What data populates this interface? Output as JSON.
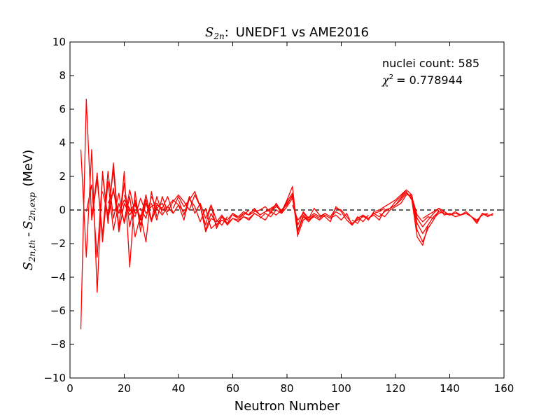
{
  "chart_data": {
    "type": "line",
    "title": {
      "math": "S",
      "math_sub": "2n",
      "colon": ":",
      "text": "UNEDF1 vs AME2016"
    },
    "xlabel": "Neutron Number",
    "ylabel": {
      "th_main": "S",
      "th_sub": "2n,th",
      "dash": "-",
      "exp_main": "S",
      "exp_sub": "2n,exp",
      "unit": "(MeV)"
    },
    "xlim": [
      0,
      160
    ],
    "ylim": [
      -10,
      10
    ],
    "xticks": [
      0,
      20,
      40,
      60,
      80,
      100,
      120,
      140,
      160
    ],
    "yticks": [
      -10,
      -8,
      -6,
      -4,
      -2,
      0,
      2,
      4,
      6,
      8,
      10
    ],
    "grid": false,
    "reference_line": {
      "y": 0,
      "style": "dashed",
      "color": "#000000"
    },
    "annotation": {
      "count_label": "nuclei count: 585",
      "chi_symbol": "χ",
      "chi_sup": "2",
      "chi_value": "= 0.778944"
    },
    "series_color": "#ff0000",
    "series": [
      {
        "x": [
          4,
          6,
          8,
          10,
          12,
          14,
          16,
          18,
          20,
          22,
          24,
          26,
          28
        ],
        "y": [
          3.6,
          -2.8,
          3.6,
          -4.9,
          2.3,
          -0.8,
          2.8,
          -1.2,
          2.3,
          -3.4,
          1.1,
          -1.3,
          0.9
        ]
      },
      {
        "x": [
          4,
          6,
          8,
          10,
          12,
          14,
          16,
          18,
          20,
          22,
          24,
          26,
          28,
          30,
          32
        ],
        "y": [
          -7.1,
          6.6,
          -0.6,
          1.8,
          -1.5,
          2.3,
          -0.5,
          1.0,
          -0.8,
          0.8,
          -1.6,
          -0.3,
          -1.9,
          1.1,
          -0.4
        ]
      },
      {
        "x": [
          6,
          8,
          10,
          12,
          14,
          16,
          18,
          20,
          22,
          24,
          26,
          28,
          30,
          32,
          34
        ],
        "y": [
          -0.1,
          1.5,
          -2.8,
          2.1,
          -0.6,
          1.3,
          -1.0,
          1.6,
          -1.0,
          0.6,
          -0.9,
          0.4,
          -0.6,
          0.8,
          -0.2
        ]
      },
      {
        "x": [
          8,
          10,
          12,
          14,
          16,
          18,
          20,
          22,
          24,
          26,
          28,
          30,
          32,
          34,
          36
        ],
        "y": [
          -0.5,
          2.2,
          -1.9,
          1.7,
          -1.2,
          0.4,
          -0.7,
          1.2,
          -0.2,
          0.1,
          -0.5,
          0.8,
          0.1,
          0.4,
          -0.3
        ]
      },
      {
        "x": [
          12,
          14,
          16,
          18,
          20,
          22,
          24,
          26,
          28,
          30,
          32,
          34,
          36,
          38
        ],
        "y": [
          1.1,
          -0.3,
          2.4,
          -1.3,
          0.4,
          -0.3,
          0.3,
          -0.6,
          0.6,
          -0.7,
          0.3,
          0.1,
          0.8,
          -0.2
        ]
      },
      {
        "x": [
          14,
          16,
          18,
          20,
          22,
          24,
          26,
          28,
          30,
          32,
          34,
          36,
          38,
          40,
          42
        ],
        "y": [
          0.4,
          1.1,
          -0.2,
          0.6,
          0.1,
          -0.4,
          0.7,
          -0.2,
          0.2,
          0.4,
          0.0,
          0.2,
          -0.2,
          0.3,
          -0.1
        ]
      },
      {
        "x": [
          20,
          22,
          24,
          26,
          28,
          30,
          32,
          34,
          36,
          38,
          40,
          42,
          44,
          46,
          48,
          50,
          52,
          54
        ],
        "y": [
          0.9,
          -0.1,
          0.4,
          -0.5,
          0.9,
          -0.6,
          0.1,
          -0.3,
          0.2,
          0.6,
          0.3,
          -0.6,
          0.7,
          0.2,
          -0.7,
          0.1,
          -1.1,
          -0.8
        ]
      },
      {
        "x": [
          30,
          32,
          34,
          36,
          38,
          40,
          42,
          44,
          46,
          48,
          50,
          52,
          54,
          56,
          58
        ],
        "y": [
          0.4,
          -0.6,
          0.8,
          -0.1,
          0.5,
          0.9,
          0.5,
          0.0,
          0.9,
          0.2,
          -0.9,
          0.3,
          -0.6,
          -0.9,
          -0.4
        ]
      },
      {
        "x": [
          38,
          40,
          42,
          44,
          46,
          48,
          50,
          52,
          54,
          56,
          58,
          60,
          62,
          64,
          66
        ],
        "y": [
          0.1,
          0.8,
          0.2,
          0.6,
          1.1,
          0.2,
          -1.2,
          -0.2,
          -0.9,
          -0.4,
          -0.6,
          -0.2,
          -0.5,
          -0.3,
          0.0
        ]
      },
      {
        "x": [
          40,
          42,
          44,
          46,
          48,
          50,
          52,
          54,
          56,
          58,
          60,
          62,
          64,
          66,
          68,
          70
        ],
        "y": [
          0.6,
          -0.3,
          0.8,
          -0.2,
          0.4,
          -0.5,
          0.3,
          -1.1,
          -0.4,
          -0.9,
          -0.5,
          -0.7,
          -0.4,
          -0.6,
          -0.2,
          -0.4
        ]
      },
      {
        "x": [
          48,
          50,
          52,
          54,
          56,
          58,
          60,
          62,
          64,
          66,
          68,
          70,
          72,
          74,
          76
        ],
        "y": [
          0.3,
          -1.3,
          -0.5,
          -0.7,
          -0.3,
          -0.8,
          -0.2,
          -0.4,
          -0.1,
          -0.3,
          0.1,
          -0.3,
          -0.1,
          0.0,
          0.3
        ]
      },
      {
        "x": [
          54,
          56,
          58,
          60,
          62,
          64,
          66,
          68,
          70,
          72,
          74,
          76,
          78,
          80,
          82,
          84
        ],
        "y": [
          -1.0,
          -0.6,
          -0.8,
          -0.5,
          -0.6,
          -0.4,
          -0.5,
          -0.2,
          -0.4,
          -0.6,
          -0.1,
          -0.3,
          0.0,
          0.3,
          0.9,
          -1.6
        ]
      },
      {
        "x": [
          60,
          62,
          64,
          66,
          68,
          70,
          72,
          74,
          76,
          78,
          80,
          82,
          84,
          86,
          88
        ],
        "y": [
          -0.3,
          -0.5,
          -0.2,
          -0.3,
          -0.1,
          0.0,
          0.2,
          -0.2,
          0.4,
          -0.1,
          0.6,
          1.4,
          -1.5,
          -0.6,
          -0.4
        ]
      },
      {
        "x": [
          66,
          68,
          70,
          72,
          74,
          76,
          78,
          80,
          82,
          84,
          86,
          88,
          90
        ],
        "y": [
          -0.2,
          0.0,
          -0.3,
          -0.1,
          0.1,
          0.3,
          -0.2,
          0.5,
          1.0,
          -1.3,
          -0.4,
          -0.7,
          -0.3
        ]
      },
      {
        "x": [
          70,
          72,
          74,
          76,
          78,
          80,
          82,
          84,
          86,
          88,
          90,
          92,
          94
        ],
        "y": [
          -0.5,
          -0.2,
          -0.4,
          0.0,
          -0.2,
          0.2,
          0.7,
          -0.9,
          -0.1,
          -0.5,
          -0.2,
          -0.4,
          -0.2
        ]
      },
      {
        "x": [
          74,
          76,
          78,
          80,
          82,
          84,
          86,
          88,
          90,
          92,
          94,
          96,
          98,
          100
        ],
        "y": [
          -0.1,
          0.2,
          0.0,
          0.4,
          0.8,
          -1.2,
          -0.3,
          -0.6,
          -0.4,
          -0.6,
          -0.3,
          -0.5,
          -0.1,
          -0.3
        ]
      },
      {
        "x": [
          82,
          84,
          86,
          88,
          90,
          92,
          94,
          96,
          98,
          100,
          102,
          104,
          106,
          108,
          110
        ],
        "y": [
          0.3,
          -0.6,
          -0.2,
          -0.5,
          0.1,
          -0.3,
          -0.4,
          -0.7,
          0.2,
          -0.1,
          -0.6,
          -0.9,
          -0.4,
          -0.7,
          -0.3
        ]
      },
      {
        "x": [
          86,
          88,
          90,
          92,
          94,
          96,
          98,
          100,
          102,
          104,
          106,
          108,
          110,
          112,
          114,
          116
        ],
        "y": [
          -0.4,
          -0.6,
          -0.3,
          -0.5,
          -0.2,
          -0.4,
          0.1,
          0.0,
          -0.4,
          -0.8,
          -0.6,
          -0.4,
          -0.5,
          -0.2,
          -0.1,
          0.1
        ]
      },
      {
        "x": [
          96,
          98,
          100,
          102,
          104,
          106,
          108,
          110,
          112,
          114,
          116,
          118,
          120,
          122,
          124
        ],
        "y": [
          -0.5,
          -0.3,
          -0.6,
          -0.2,
          -0.9,
          -0.5,
          -0.3,
          -0.6,
          -0.1,
          0.0,
          0.2,
          0.4,
          0.6,
          0.9,
          1.2
        ]
      },
      {
        "x": [
          104,
          106,
          108,
          110,
          112,
          114,
          116,
          118,
          120,
          122,
          124,
          126,
          128,
          130,
          132
        ],
        "y": [
          -0.6,
          -0.8,
          -0.3,
          -0.5,
          -0.2,
          -0.4,
          -0.1,
          0.1,
          0.3,
          0.7,
          1.1,
          0.6,
          -1.6,
          -2.1,
          -0.9
        ]
      },
      {
        "x": [
          110,
          112,
          114,
          116,
          118,
          120,
          122,
          124,
          126,
          128,
          130,
          132,
          134,
          136
        ],
        "y": [
          -0.5,
          -0.3,
          -0.6,
          0.0,
          0.1,
          0.5,
          0.8,
          1.2,
          0.9,
          -1.2,
          -1.9,
          -1.1,
          -0.6,
          0.0
        ]
      },
      {
        "x": [
          114,
          116,
          118,
          120,
          122,
          124,
          126,
          128,
          130,
          132,
          134,
          136,
          138,
          140
        ],
        "y": [
          -0.2,
          -0.4,
          0.0,
          0.2,
          0.4,
          0.9,
          0.9,
          -0.8,
          -1.4,
          -0.9,
          -0.4,
          -0.1,
          -0.2,
          -0.3
        ]
      },
      {
        "x": [
          118,
          120,
          122,
          124,
          126,
          128,
          130,
          132,
          134,
          136,
          138,
          140,
          142,
          144
        ],
        "y": [
          0.1,
          0.3,
          0.6,
          1.0,
          0.7,
          -0.5,
          -1.0,
          -0.6,
          -0.2,
          0.1,
          -0.3,
          -0.2,
          -0.4,
          -0.3
        ]
      },
      {
        "x": [
          124,
          126,
          128,
          130,
          132,
          134,
          136,
          138,
          140,
          142,
          144,
          146,
          148,
          150,
          152,
          154
        ],
        "y": [
          1.0,
          0.8,
          -0.3,
          -0.7,
          -0.4,
          -0.5,
          -0.2,
          -0.1,
          -0.3,
          -0.1,
          -0.3,
          -0.2,
          -0.4,
          -0.6,
          -0.3,
          -0.2
        ]
      },
      {
        "x": [
          130,
          132,
          134,
          136,
          138,
          140,
          142,
          144,
          146,
          148,
          150,
          152,
          154,
          156
        ],
        "y": [
          -0.5,
          -0.3,
          -0.1,
          0.1,
          -0.1,
          -0.3,
          -0.2,
          -0.3,
          -0.1,
          -0.4,
          -0.7,
          -0.2,
          -0.3,
          -0.3
        ]
      },
      {
        "x": [
          140,
          142,
          144,
          146,
          148,
          150,
          152,
          154,
          156
        ],
        "y": [
          -0.2,
          -0.4,
          -0.3,
          -0.2,
          -0.4,
          -0.8,
          -0.2,
          -0.4,
          -0.2
        ]
      }
    ]
  }
}
